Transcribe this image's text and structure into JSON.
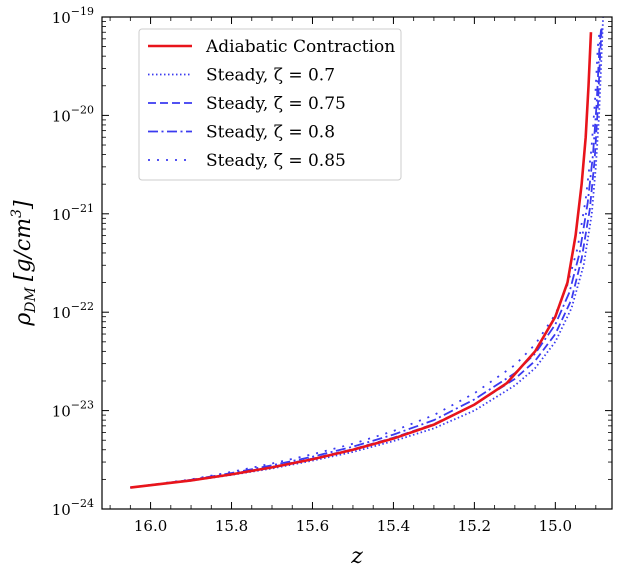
{
  "chart_data": {
    "type": "line",
    "xlabel": "z",
    "ylabel": "ρ_DM [g/cm³]",
    "ylabel_main": "ρ",
    "ylabel_sub": "DM",
    "ylabel_unit": "[g/cm",
    "ylabel_exp": "3",
    "ylabel_close": "]",
    "xlim": [
      16.12,
      14.86
    ],
    "ylim": [
      1e-24,
      1e-19
    ],
    "yscale": "log",
    "x_ticks": [
      16.0,
      15.8,
      15.6,
      15.4,
      15.2,
      15.0
    ],
    "x_tick_labels": [
      "16.0",
      "15.8",
      "15.6",
      "15.4",
      "15.2",
      "15.0"
    ],
    "y_ticks": [
      {
        "value": 1e-24,
        "base": "10",
        "exp": "−24"
      },
      {
        "value": 1e-23,
        "base": "10",
        "exp": "−23"
      },
      {
        "value": 1e-22,
        "base": "10",
        "exp": "−22"
      },
      {
        "value": 1e-21,
        "base": "10",
        "exp": "−21"
      },
      {
        "value": 1e-20,
        "base": "10",
        "exp": "−20"
      },
      {
        "value": 1e-19,
        "base": "10",
        "exp": "−19"
      }
    ],
    "grid": false,
    "legend_position": "top-left",
    "series": [
      {
        "name": "Adiabatic Contraction",
        "color": "#e8141b",
        "dash": "solid",
        "points": [
          [
            16.05,
            1.65e-24
          ],
          [
            15.9,
            1.95e-24
          ],
          [
            15.8,
            2.25e-24
          ],
          [
            15.7,
            2.65e-24
          ],
          [
            15.6,
            3.2e-24
          ],
          [
            15.5,
            4e-24
          ],
          [
            15.4,
            5.2e-24
          ],
          [
            15.3,
            7.2e-24
          ],
          [
            15.2,
            1.15e-23
          ],
          [
            15.12,
            1.9e-23
          ],
          [
            15.05,
            4e-23
          ],
          [
            15.0,
            9e-23
          ],
          [
            14.97,
            2e-22
          ],
          [
            14.95,
            6e-22
          ],
          [
            14.935,
            2e-21
          ],
          [
            14.925,
            6e-21
          ],
          [
            14.918,
            2e-20
          ],
          [
            14.912,
            7e-20
          ]
        ]
      },
      {
        "name": "Steady, ζ = 0.7",
        "color": "#3a3af0",
        "dash": "dotted",
        "points": [
          [
            16.05,
            1.65e-24
          ],
          [
            15.9,
            1.94e-24
          ],
          [
            15.8,
            2.22e-24
          ],
          [
            15.7,
            2.58e-24
          ],
          [
            15.6,
            3.1e-24
          ],
          [
            15.5,
            3.8e-24
          ],
          [
            15.4,
            4.9e-24
          ],
          [
            15.3,
            6.6e-24
          ],
          [
            15.2,
            1e-23
          ],
          [
            15.1,
            1.8e-23
          ],
          [
            15.05,
            2.7e-23
          ],
          [
            15.0,
            5e-23
          ],
          [
            14.96,
            1.1e-22
          ],
          [
            14.93,
            3e-22
          ],
          [
            14.91,
            1e-21
          ],
          [
            14.9,
            3e-21
          ],
          [
            14.892,
            1e-20
          ],
          [
            14.886,
            4e-20
          ],
          [
            14.882,
            1e-19
          ]
        ]
      },
      {
        "name": "Steady, ζ = 0.75",
        "color": "#3a3af0",
        "dash": "dashed",
        "points": [
          [
            16.05,
            1.65e-24
          ],
          [
            15.9,
            1.96e-24
          ],
          [
            15.8,
            2.27e-24
          ],
          [
            15.7,
            2.68e-24
          ],
          [
            15.6,
            3.25e-24
          ],
          [
            15.5,
            4.05e-24
          ],
          [
            15.4,
            5.3e-24
          ],
          [
            15.3,
            7.3e-24
          ],
          [
            15.2,
            1.15e-23
          ],
          [
            15.1,
            2.1e-23
          ],
          [
            15.05,
            3.2e-23
          ],
          [
            15.0,
            6e-23
          ],
          [
            14.96,
            1.35e-22
          ],
          [
            14.935,
            3.5e-22
          ],
          [
            14.915,
            1.1e-21
          ],
          [
            14.903,
            3.5e-21
          ],
          [
            14.895,
            1.2e-20
          ],
          [
            14.889,
            4.5e-20
          ],
          [
            14.885,
            8e-20
          ]
        ]
      },
      {
        "name": "Steady, ζ = 0.8",
        "color": "#3a3af0",
        "dash": "dashdot",
        "points": [
          [
            16.05,
            1.65e-24
          ],
          [
            15.9,
            1.98e-24
          ],
          [
            15.8,
            2.32e-24
          ],
          [
            15.7,
            2.78e-24
          ],
          [
            15.6,
            3.4e-24
          ],
          [
            15.5,
            4.3e-24
          ],
          [
            15.4,
            5.7e-24
          ],
          [
            15.3,
            8e-24
          ],
          [
            15.2,
            1.3e-23
          ],
          [
            15.1,
            2.4e-23
          ],
          [
            15.05,
            3.8e-23
          ],
          [
            15.0,
            7.5e-23
          ],
          [
            14.965,
            1.6e-22
          ],
          [
            14.94,
            4e-22
          ],
          [
            14.92,
            1.3e-21
          ],
          [
            14.907,
            4e-21
          ],
          [
            14.898,
            1.3e-20
          ],
          [
            14.891,
            5e-20
          ],
          [
            14.887,
            7.5e-20
          ]
        ]
      },
      {
        "name": "Steady, ζ = 0.85",
        "color": "#3a3af0",
        "dash": "densedot",
        "points": [
          [
            16.05,
            1.65e-24
          ],
          [
            15.9,
            2e-24
          ],
          [
            15.8,
            2.38e-24
          ],
          [
            15.7,
            2.9e-24
          ],
          [
            15.6,
            3.6e-24
          ],
          [
            15.5,
            4.6e-24
          ],
          [
            15.4,
            6.2e-24
          ],
          [
            15.3,
            9e-24
          ],
          [
            15.2,
            1.5e-23
          ],
          [
            15.1,
            2.9e-23
          ],
          [
            15.05,
            4.7e-23
          ],
          [
            15.0,
            9.5e-23
          ],
          [
            14.97,
            1.9e-22
          ],
          [
            14.945,
            4.5e-22
          ],
          [
            14.925,
            1.4e-21
          ],
          [
            14.911,
            4.5e-21
          ],
          [
            14.902,
            1.4e-20
          ],
          [
            14.895,
            5e-20
          ],
          [
            14.891,
            7e-20
          ]
        ]
      }
    ]
  }
}
